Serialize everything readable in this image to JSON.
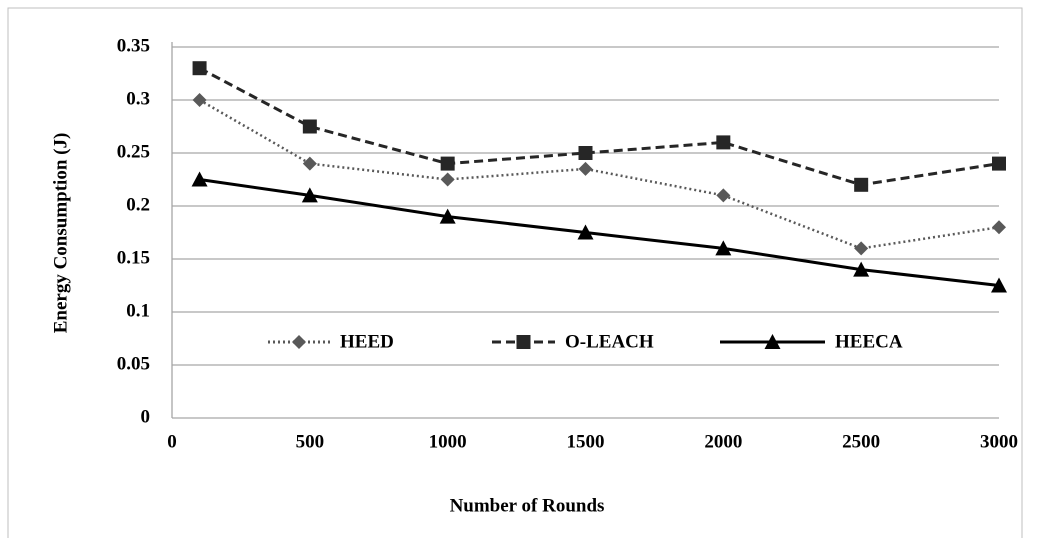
{
  "chart_data": {
    "type": "line",
    "xlabel": "Number of Rounds",
    "ylabel": "Energy Consumption (J)",
    "x": [
      100,
      500,
      1000,
      1500,
      2000,
      2500,
      3000
    ],
    "series": [
      {
        "name": "HEED",
        "color": "#595959",
        "dash": "dotted",
        "marker": "diamond",
        "values": [
          0.3,
          0.24,
          0.225,
          0.235,
          0.21,
          0.16,
          0.18
        ]
      },
      {
        "name": "O-LEACH",
        "color": "#262626",
        "dash": "dashed",
        "marker": "square",
        "values": [
          0.33,
          0.275,
          0.24,
          0.25,
          0.26,
          0.22,
          0.24
        ]
      },
      {
        "name": "HEECA",
        "color": "#000000",
        "dash": "solid",
        "marker": "triangle",
        "values": [
          0.225,
          0.21,
          0.19,
          0.175,
          0.16,
          0.14,
          0.125
        ]
      }
    ],
    "xlim": [
      0,
      3000
    ],
    "xticks": [
      0,
      500,
      1000,
      1500,
      2000,
      2500,
      3000
    ],
    "ylim": [
      0,
      0.35
    ],
    "yticks": [
      0,
      0.05,
      0.1,
      0.15,
      0.2,
      0.25,
      0.3,
      0.35
    ],
    "grid": true,
    "legend": "inside-bottom"
  }
}
